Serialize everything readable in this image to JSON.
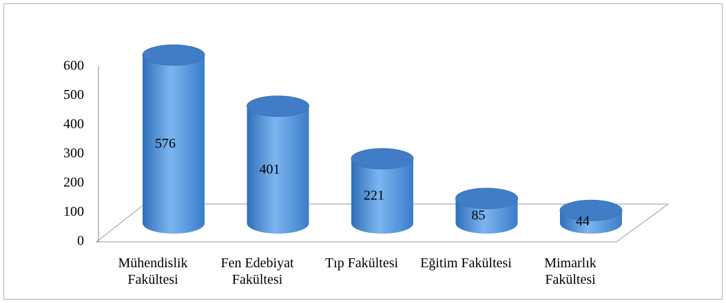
{
  "chart_data": {
    "type": "cylinder",
    "categories": [
      "Mühendislik Fakültesi",
      "Fen Edebiyat Fakültesi",
      "Tıp Fakültesi",
      "Eğitim Fakültesi",
      "Mimarlık Fakültesi"
    ],
    "values": [
      576,
      401,
      221,
      85,
      44
    ],
    "color": "#4a8ad6",
    "ylim": [
      0,
      600
    ],
    "yticks": [
      0,
      100,
      200,
      300,
      400,
      500,
      600
    ],
    "grid": false
  }
}
